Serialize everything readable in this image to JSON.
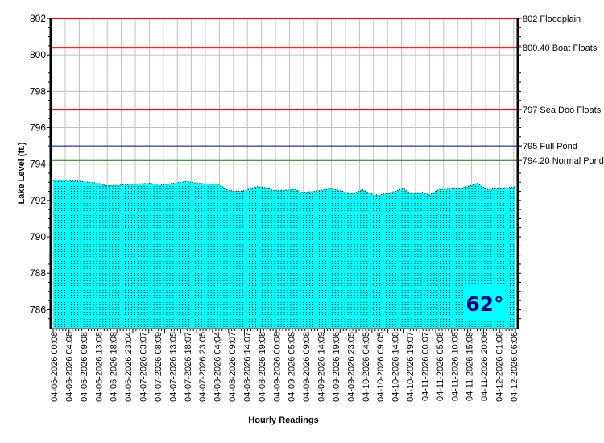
{
  "chart_data": {
    "type": "area",
    "title": "",
    "xlabel": "Hourly Readings",
    "ylabel": "Lake Level (ft.)",
    "ylim": [
      785,
      802
    ],
    "yticks": [
      786,
      788,
      790,
      792,
      794,
      796,
      798,
      800,
      802
    ],
    "grid": true,
    "x_count": 146,
    "x_tick_labels": [
      "04-06-2026 00:08",
      "04-06-2026 04:08",
      "04-06-2026 09:08",
      "04-06-2026 13:08",
      "04-06-2026 18:08",
      "04-06-2026 23:04",
      "04-07-2026 03:07",
      "04-07-2026 08:09",
      "04-07-2026 13:05",
      "04-07-2026 18:07",
      "04-07-2026 23:05",
      "04-08-2026 04:04",
      "04-08-2026 09:07",
      "04-08-2026 14:07",
      "04-08-2026 19:08",
      "04-09-2026 00:08",
      "04-09-2026 05:08",
      "04-09-2026 09:08",
      "04-09-2026 14:09",
      "04-09-2026 19:06",
      "04-09-2026 23:05",
      "04-10-2026 04:05",
      "04-10-2026 09:05",
      "04-10-2026 14:08",
      "04-10-2026 19:07",
      "04-11-2026 00:07",
      "04-11-2026 05:08",
      "04-11-2026 10:08",
      "04-11-2026 15:08",
      "04-11-2026 20:06",
      "04-12-2026 01:08",
      "04-12-2026 06:06"
    ],
    "series": [
      {
        "name": "Lake Level",
        "color": "#00ffff",
        "points": [
          [
            0,
            793.1
          ],
          [
            3,
            793.12
          ],
          [
            9,
            793.05
          ],
          [
            14,
            792.95
          ],
          [
            17,
            792.8
          ],
          [
            21,
            792.85
          ],
          [
            26,
            792.9
          ],
          [
            30,
            792.95
          ],
          [
            34,
            792.85
          ],
          [
            38,
            792.95
          ],
          [
            42,
            793.05
          ],
          [
            45,
            792.95
          ],
          [
            49,
            792.9
          ],
          [
            52,
            792.9
          ],
          [
            55,
            792.55
          ],
          [
            59,
            792.5
          ],
          [
            64,
            792.75
          ],
          [
            67,
            792.7
          ],
          [
            69,
            792.55
          ],
          [
            74,
            792.58
          ],
          [
            76,
            792.6
          ],
          [
            78,
            792.45
          ],
          [
            82,
            792.5
          ],
          [
            87,
            792.65
          ],
          [
            91,
            792.5
          ],
          [
            94,
            792.35
          ],
          [
            97,
            792.6
          ],
          [
            100,
            792.35
          ],
          [
            102,
            792.3
          ],
          [
            105,
            792.4
          ],
          [
            110,
            792.65
          ],
          [
            112,
            792.4
          ],
          [
            116,
            792.45
          ],
          [
            118,
            792.3
          ],
          [
            121,
            792.6
          ],
          [
            127,
            792.65
          ],
          [
            130,
            792.75
          ],
          [
            133,
            792.95
          ],
          [
            136,
            792.6
          ],
          [
            139,
            792.65
          ],
          [
            145,
            792.75
          ]
        ]
      }
    ],
    "reference_lines": [
      {
        "value": 802,
        "label": "802 Floodplain",
        "color": "#ff0000"
      },
      {
        "value": 800.4,
        "label": "800.40 Boat Floats",
        "color": "#ff0000"
      },
      {
        "value": 797,
        "label": "797 Sea Doo Floats",
        "color": "#ff0000"
      },
      {
        "value": 795,
        "label": "795 Full Pond",
        "color": "#000080"
      },
      {
        "value": 794.2,
        "label": "794.20 Normal Pond",
        "color": "#008000"
      }
    ],
    "annotation": "62°"
  }
}
